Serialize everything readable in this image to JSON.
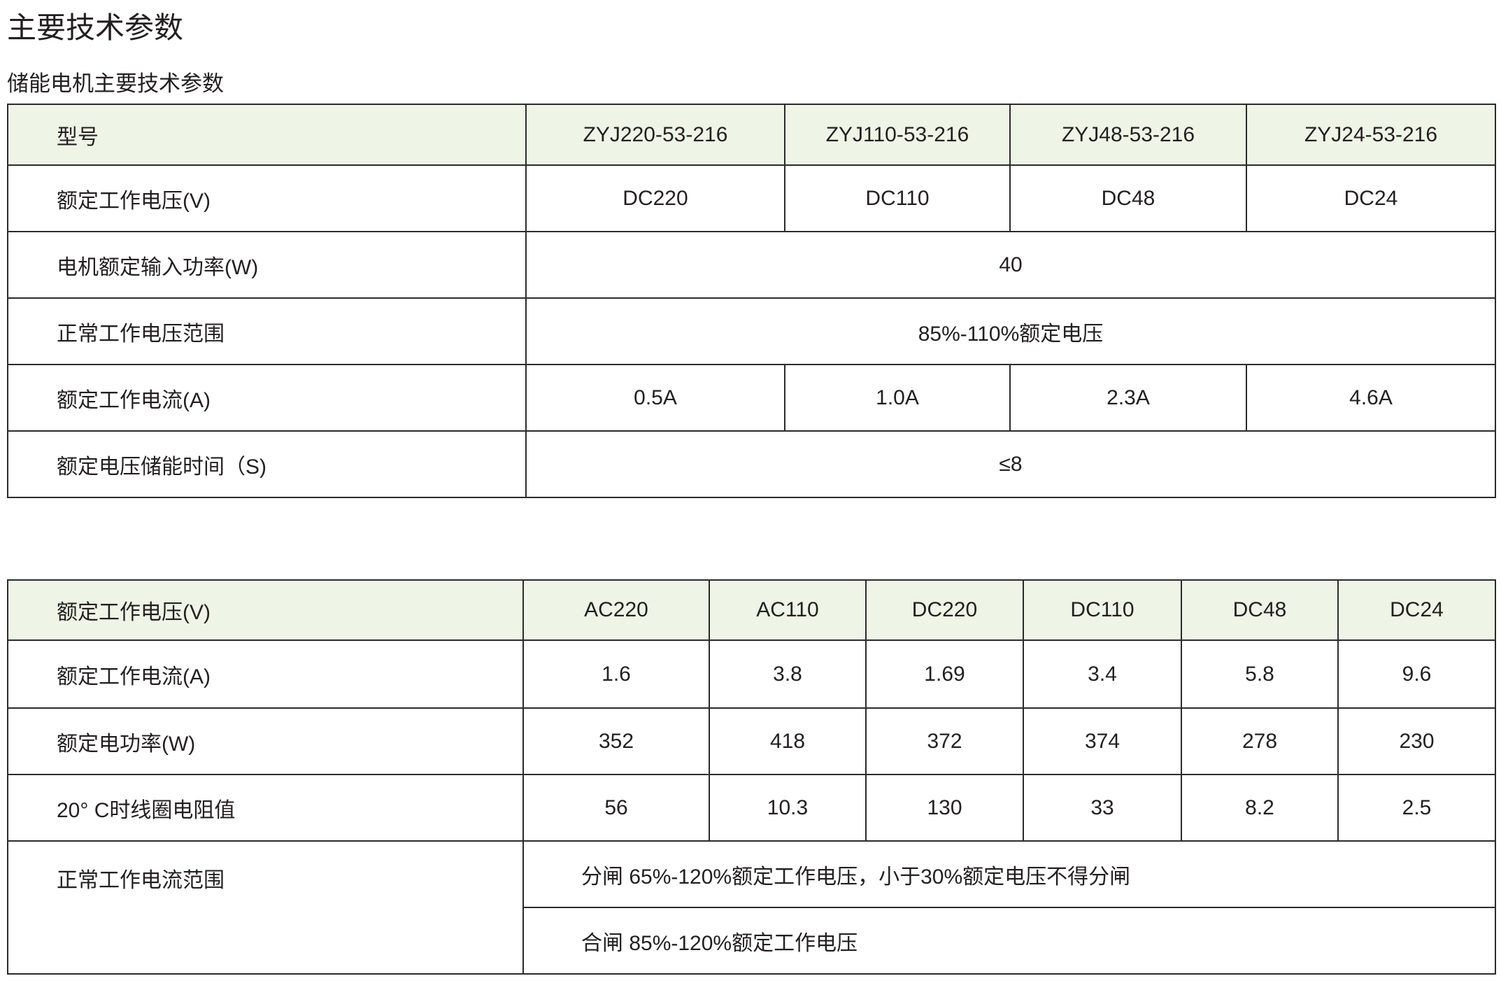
{
  "page_title": "主要技术参数",
  "section1": {
    "subtitle": "储能电机主要技术参数",
    "header": {
      "label": "型号",
      "models": [
        "ZYJ220-53-216",
        "ZYJ110-53-216",
        "ZYJ48-53-216",
        "ZYJ24-53-216"
      ]
    },
    "rows": [
      {
        "label": "额定工作电压(V)",
        "values": [
          "DC220",
          "DC110",
          "DC48",
          "DC24"
        ]
      },
      {
        "label": "电机额定输入功率(W)",
        "merged": "40"
      },
      {
        "label": "正常工作电压范围",
        "merged": "85%-110%额定电压"
      },
      {
        "label": "额定工作电流(A)",
        "values": [
          "0.5A",
          "1.0A",
          "2.3A",
          "4.6A"
        ]
      },
      {
        "label": "额定电压储能时间（S)",
        "merged": "≤8"
      }
    ]
  },
  "section2": {
    "header": {
      "label": "额定工作电压(V)",
      "voltages": [
        "AC220",
        "AC110",
        "DC220",
        "DC110",
        "DC48",
        "DC24"
      ]
    },
    "rows": [
      {
        "label": "额定工作电流(A)",
        "values": [
          "1.6",
          "3.8",
          "1.69",
          "3.4",
          "5.8",
          "9.6"
        ]
      },
      {
        "label": "额定电功率(W)",
        "values": [
          "352",
          "418",
          "372",
          "374",
          "278",
          "230"
        ]
      },
      {
        "label": "20° C时线圈电阻值",
        "values": [
          "56",
          "10.3",
          "130",
          "33",
          "8.2",
          "2.5"
        ]
      }
    ],
    "range": {
      "label": "正常工作电流范围",
      "open": "分闸 65%-120%额定工作电压，小于30%额定电压不得分闸",
      "close": "合闸 85%-120%额定工作电压"
    }
  },
  "colors": {
    "header_bg": "#eef4e6",
    "border": "#2b2b2b",
    "text": "#231f20"
  }
}
